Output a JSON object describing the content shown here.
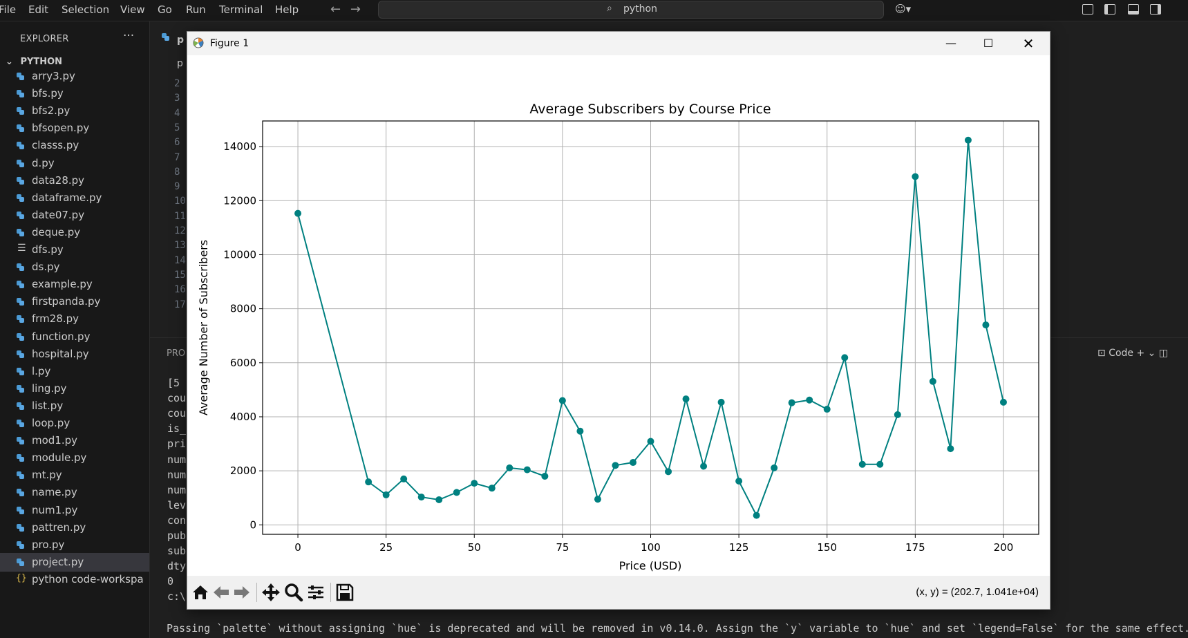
{
  "menubar": {
    "items": [
      "File",
      "Edit",
      "Selection",
      "View",
      "Go",
      "Run",
      "Terminal",
      "Help"
    ],
    "search_text": "python"
  },
  "sidebar": {
    "title": "EXPLORER",
    "more": "···",
    "folder": "PYTHON",
    "files": [
      {
        "name": "arry3.py",
        "icon": "python-file-icon"
      },
      {
        "name": "bfs.py",
        "icon": "python-file-icon"
      },
      {
        "name": "bfs2.py",
        "icon": "python-file-icon"
      },
      {
        "name": "bfsopen.py",
        "icon": "python-file-icon"
      },
      {
        "name": "classs.py",
        "icon": "python-file-icon"
      },
      {
        "name": "d.py",
        "icon": "python-file-icon"
      },
      {
        "name": "data28.py",
        "icon": "python-file-icon"
      },
      {
        "name": "dataframe.py",
        "icon": "python-file-icon"
      },
      {
        "name": "date07.py",
        "icon": "python-file-icon"
      },
      {
        "name": "deque.py",
        "icon": "python-file-icon"
      },
      {
        "name": "dfs.py",
        "icon": "text-file-icon"
      },
      {
        "name": "ds.py",
        "icon": "python-file-icon"
      },
      {
        "name": "example.py",
        "icon": "python-file-icon"
      },
      {
        "name": "firstpanda.py",
        "icon": "python-file-icon"
      },
      {
        "name": "frm28.py",
        "icon": "python-file-icon"
      },
      {
        "name": "function.py",
        "icon": "python-file-icon"
      },
      {
        "name": "hospital.py",
        "icon": "python-file-icon"
      },
      {
        "name": "l.py",
        "icon": "python-file-icon"
      },
      {
        "name": "ling.py",
        "icon": "python-file-icon"
      },
      {
        "name": "list.py",
        "icon": "python-file-icon"
      },
      {
        "name": "loop.py",
        "icon": "python-file-icon"
      },
      {
        "name": "mod1.py",
        "icon": "python-file-icon"
      },
      {
        "name": "module.py",
        "icon": "python-file-icon"
      },
      {
        "name": "mt.py",
        "icon": "python-file-icon"
      },
      {
        "name": "name.py",
        "icon": "python-file-icon"
      },
      {
        "name": "num1.py",
        "icon": "python-file-icon"
      },
      {
        "name": "pattren.py",
        "icon": "python-file-icon"
      },
      {
        "name": "pro.py",
        "icon": "python-file-icon"
      },
      {
        "name": "project.py",
        "icon": "python-file-icon",
        "selected": true
      },
      {
        "name": "python code-workspa",
        "icon": "json-file-icon"
      }
    ]
  },
  "editor": {
    "tab1": "p",
    "tab2": "p",
    "line_numbers": [
      "2",
      "3",
      "4",
      "5",
      "6",
      "7",
      "8",
      "9",
      "10",
      "11",
      "12",
      "13",
      "14",
      "15",
      "16",
      "17"
    ]
  },
  "panel": {
    "tab": "PRO",
    "terminal_name": "Code",
    "terminal_lines": [
      "[5",
      "cou",
      "cou",
      "is_",
      "pri",
      "num",
      "num",
      "num",
      "lev",
      "con",
      "pub",
      "sub",
      "dty",
      "0",
      "c:\\"
    ],
    "warning": "Passing `palette` without assigning `hue` is deprecated and will be removed in v0.14.0. Assign the `y` variable to `hue` and set `legend=False` for the same effect."
  },
  "figure_window": {
    "title": "Figure 1",
    "coords": "(x, y) = (202.7, 1.041e+04)"
  },
  "chart_data": {
    "type": "line",
    "title": "Average Subscribers by Course Price",
    "xlabel": "Price (USD)",
    "ylabel": "Average Number of Subscribers",
    "x": [
      0,
      20,
      25,
      30,
      35,
      40,
      45,
      50,
      55,
      60,
      65,
      70,
      75,
      80,
      85,
      90,
      95,
      100,
      105,
      110,
      115,
      120,
      125,
      130,
      135,
      140,
      145,
      150,
      155,
      160,
      165,
      170,
      175,
      180,
      185,
      190,
      195,
      200
    ],
    "y": [
      11530,
      1590,
      1110,
      1700,
      1030,
      930,
      1200,
      1540,
      1360,
      2110,
      2040,
      1800,
      4600,
      3470,
      950,
      2200,
      2310,
      3090,
      1970,
      4660,
      2170,
      4540,
      1620,
      350,
      2110,
      4520,
      4620,
      4280,
      6190,
      2240,
      2240,
      4080,
      12890,
      5310,
      2820,
      14240,
      7400,
      4540
    ],
    "xlim": [
      -10,
      210
    ],
    "ylim": [
      -350,
      14950
    ],
    "xticks": [
      0,
      25,
      50,
      75,
      100,
      125,
      150,
      175,
      200
    ],
    "yticks": [
      0,
      2000,
      4000,
      6000,
      8000,
      10000,
      12000,
      14000
    ],
    "grid": true,
    "color": "#008080"
  }
}
